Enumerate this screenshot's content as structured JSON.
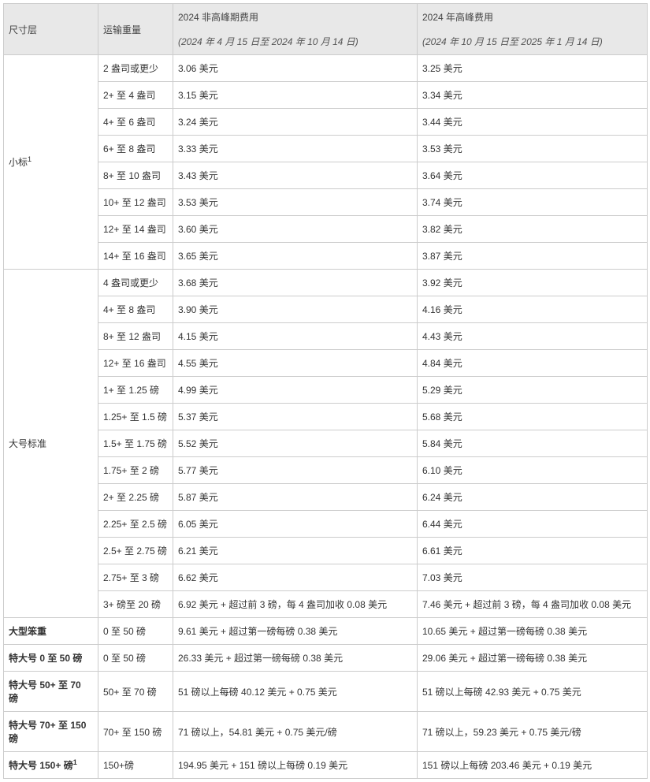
{
  "headers": {
    "col1": "尺寸层",
    "col2": "运输重量",
    "col3_main": "2024 非高峰期费用",
    "col3_sub": "(2024 年 4 月 15 日至 2024 年 10 月 14 日)",
    "col4_main": "2024 年高峰费用",
    "col4_sub": "(2024 年 10 月 15 日至 2025 年 1 月 14 日)"
  },
  "g1": {
    "tier": "小标",
    "foot": "1",
    "rows": [
      {
        "w": "2 盎司或更少",
        "a": "3.06 美元",
        "b": "3.25 美元"
      },
      {
        "w": "2+ 至 4 盎司",
        "a": "3.15 美元",
        "b": "3.34 美元"
      },
      {
        "w": "4+ 至 6 盎司",
        "a": "3.24 美元",
        "b": "3.44 美元"
      },
      {
        "w": "6+ 至 8 盎司",
        "a": "3.33 美元",
        "b": "3.53 美元"
      },
      {
        "w": "8+ 至 10 盎司",
        "a": "3.43 美元",
        "b": "3.64 美元"
      },
      {
        "w": "10+ 至 12 盎司",
        "a": "3.53 美元",
        "b": "3.74 美元"
      },
      {
        "w": "12+ 至 14 盎司",
        "a": "3.60 美元",
        "b": "3.82 美元"
      },
      {
        "w": "14+ 至 16 盎司",
        "a": "3.65 美元",
        "b": "3.87 美元"
      }
    ]
  },
  "g2": {
    "tier": "大号标准",
    "rows": [
      {
        "w": "4 盎司或更少",
        "a": "3.68 美元",
        "b": "3.92 美元"
      },
      {
        "w": "4+ 至 8 盎司",
        "a": "3.90 美元",
        "b": "4.16 美元"
      },
      {
        "w": "8+ 至 12 盎司",
        "a": "4.15 美元",
        "b": "4.43 美元"
      },
      {
        "w": "12+ 至 16 盎司",
        "a": "4.55 美元",
        "b": "4.84 美元"
      },
      {
        "w": "1+ 至 1.25 磅",
        "a": "4.99 美元",
        "b": "5.29 美元"
      },
      {
        "w": "1.25+ 至 1.5 磅",
        "a": "5.37 美元",
        "b": "5.68 美元"
      },
      {
        "w": "1.5+ 至 1.75 磅",
        "a": "5.52 美元",
        "b": "5.84 美元"
      },
      {
        "w": "1.75+ 至 2 磅",
        "a": "5.77 美元",
        "b": "6.10 美元"
      },
      {
        "w": "2+ 至 2.25 磅",
        "a": "5.87 美元",
        "b": "6.24 美元"
      },
      {
        "w": "2.25+ 至 2.5 磅",
        "a": "6.05 美元",
        "b": "6.44 美元"
      },
      {
        "w": "2.5+ 至 2.75 磅",
        "a": "6.21 美元",
        "b": "6.61 美元"
      },
      {
        "w": "2.75+ 至 3 磅",
        "a": "6.62 美元",
        "b": "7.03 美元"
      },
      {
        "w": "3+ 磅至 20 磅",
        "a": "6.92 美元 + 超过前 3 磅，每 4 盎司加收 0.08 美元",
        "b": "7.46 美元 + 超过前 3 磅，每 4 盎司加收 0.08 美元"
      }
    ]
  },
  "extra": [
    {
      "tier": "大型笨重",
      "w": "0 至 50 磅",
      "a": "9.61 美元 + 超过第一磅每磅 0.38 美元",
      "b": "10.65 美元 + 超过第一磅每磅 0.38 美元"
    },
    {
      "tier": "特大号 0 至 50 磅",
      "w": "0 至 50 磅",
      "a": "26.33 美元 + 超过第一磅每磅 0.38 美元",
      "b": "29.06 美元 + 超过第一磅每磅 0.38 美元"
    },
    {
      "tier": "特大号 50+ 至 70 磅",
      "w": "50+ 至 70 磅",
      "a": "51 磅以上每磅 40.12 美元 + 0.75 美元",
      "b": "51 磅以上每磅 42.93 美元 + 0.75 美元"
    },
    {
      "tier": "特大号 70+ 至 150 磅",
      "w": "70+ 至 150 磅",
      "a": "71 磅以上，54.81 美元 + 0.75 美元/磅",
      "b": "71 磅以上，59.23 美元 + 0.75 美元/磅"
    }
  ],
  "last": {
    "tier": "特大号 150+ 磅",
    "foot": "1",
    "w": "150+磅",
    "a": "194.95 美元 + 151 磅以上每磅 0.19 美元",
    "b": "151 磅以上每磅 203.46 美元 + 0.19 美元"
  }
}
